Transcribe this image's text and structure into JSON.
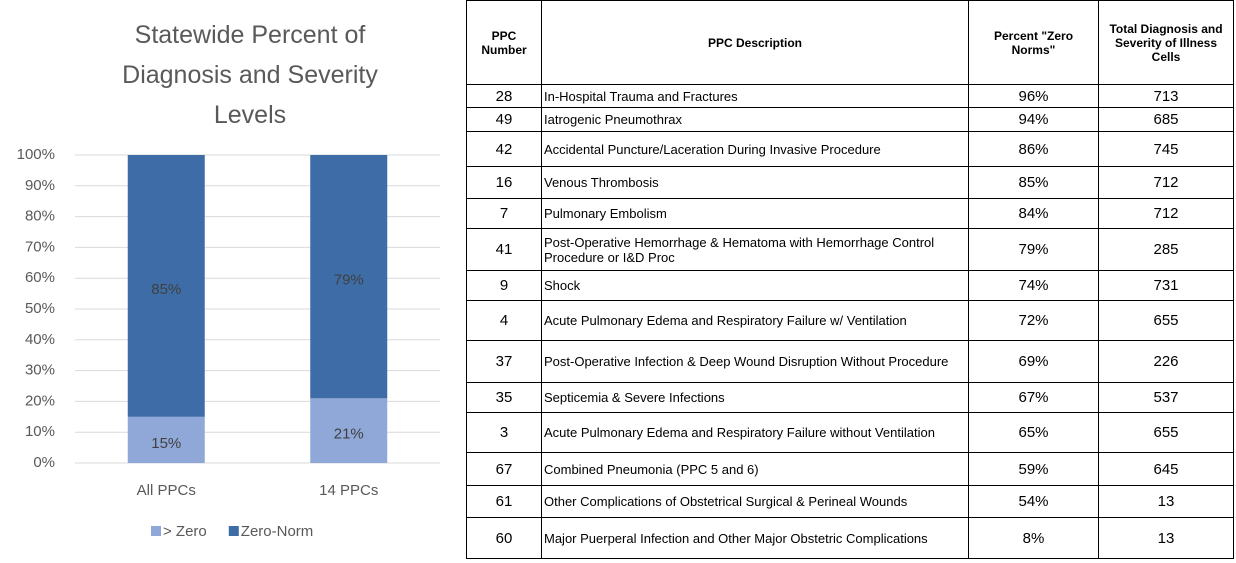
{
  "chart_data": {
    "type": "stacked_bar",
    "title": "Statewide Percent of Diagnosis and Severity Levels",
    "categories": [
      "All PPCs",
      "14 PPCs"
    ],
    "series": [
      {
        "name": "> Zero",
        "color": "#8fa8d8",
        "values": [
          15,
          21
        ],
        "value_labels": [
          "15%",
          "21%"
        ]
      },
      {
        "name": "Zero-Norm",
        "color": "#3d6ca6",
        "values": [
          85,
          79
        ],
        "value_labels": [
          "85%",
          "79%"
        ]
      }
    ],
    "ylim": [
      0,
      100
    ],
    "yticks": [
      {
        "value": 0,
        "label": "0%"
      },
      {
        "value": 10,
        "label": "10%"
      },
      {
        "value": 20,
        "label": "20%"
      },
      {
        "value": 30,
        "label": "30%"
      },
      {
        "value": 40,
        "label": "40%"
      },
      {
        "value": 50,
        "label": "50%"
      },
      {
        "value": 60,
        "label": "60%"
      },
      {
        "value": 70,
        "label": "70%"
      },
      {
        "value": 80,
        "label": "80%"
      },
      {
        "value": 90,
        "label": "90%"
      },
      {
        "value": 100,
        "label": "100%"
      }
    ],
    "grid": true,
    "legend": "bottom"
  },
  "table": {
    "columns": [
      "PPC Number",
      "PPC Description",
      "Percent \"Zero Norms\"",
      "Total Diagnosis and Severity of Illness Cells"
    ],
    "rows": [
      [
        28,
        "In-Hospital Trauma and Fractures",
        "96%",
        713
      ],
      [
        49,
        "Iatrogenic Pneumothrax",
        "94%",
        685
      ],
      [
        42,
        "Accidental Puncture/Laceration During Invasive Procedure",
        "86%",
        745
      ],
      [
        16,
        "Venous Thrombosis",
        "85%",
        712
      ],
      [
        7,
        "Pulmonary Embolism",
        "84%",
        712
      ],
      [
        41,
        "Post-Operative Hemorrhage & Hematoma with Hemorrhage Control Procedure or I&D Proc",
        "79%",
        285
      ],
      [
        9,
        "Shock",
        "74%",
        731
      ],
      [
        4,
        "Acute Pulmonary Edema and Respiratory Failure w/ Ventilation",
        "72%",
        655
      ],
      [
        37,
        "Post-Operative Infection & Deep Wound Disruption Without Procedure",
        "69%",
        226
      ],
      [
        35,
        "Septicemia & Severe Infections",
        "67%",
        537
      ],
      [
        3,
        "Acute Pulmonary Edema and Respiratory Failure without Ventilation",
        "65%",
        655
      ],
      [
        67,
        "Combined Pneumonia (PPC 5 and 6)",
        "59%",
        645
      ],
      [
        61,
        "Other Complications of Obstetrical Surgical & Perineal Wounds",
        "54%",
        13
      ],
      [
        60,
        "Major Puerperal Infection and Other Major Obstetric Complications",
        "8%",
        13
      ]
    ]
  }
}
